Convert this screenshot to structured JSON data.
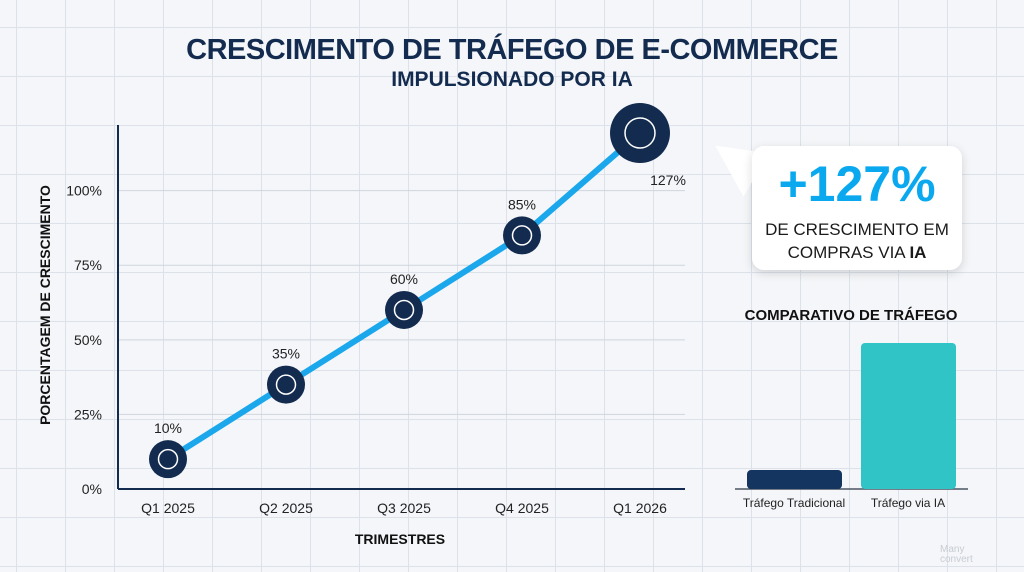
{
  "chart_data": [
    {
      "type": "line",
      "title": "CRESCIMENTO DE TRÁFEGO DE E-COMMERCE",
      "subtitle": "IMPULSIONADO POR IA",
      "xlabel": "TRIMESTRES",
      "ylabel": "PORCENTAGEM DE CRESCIMENTO",
      "categories": [
        "Q1 2025",
        "Q2 2025",
        "Q3 2025",
        "Q4 2025",
        "Q1 2026"
      ],
      "values": [
        10,
        35,
        60,
        85,
        127
      ],
      "data_labels": [
        "10%",
        "35%",
        "60%",
        "85%",
        "127%"
      ],
      "point_icons": [
        "shopping-cart-icon",
        "ai-brain-icon",
        "smartphone-icon",
        "growth-chart-icon",
        "ai-brain-cart-icon"
      ],
      "yticks": [
        0,
        25,
        50,
        75,
        100
      ],
      "ytick_labels": [
        "0%",
        "25%",
        "50%",
        "75%",
        "100%"
      ],
      "ylim": [
        0,
        122
      ],
      "grid": true,
      "line_color": "#1aa7ec",
      "marker_color": "#132b4f"
    },
    {
      "type": "bar",
      "title": "COMPARATIVO DE TRÁFEGO",
      "categories": [
        "Tráfego Tradicional",
        "Tráfego via IA"
      ],
      "values": [
        13,
        100
      ],
      "colors": [
        "#143560",
        "#31c4c6"
      ]
    }
  ],
  "callout": {
    "value": "+127%",
    "text_line1": "DE CRESCIMENTO EM",
    "text_line2_prefix": "COMPRAS VIA ",
    "text_line2_bold": "IA"
  },
  "watermark": {
    "line1": "Many",
    "line2": "convert"
  }
}
